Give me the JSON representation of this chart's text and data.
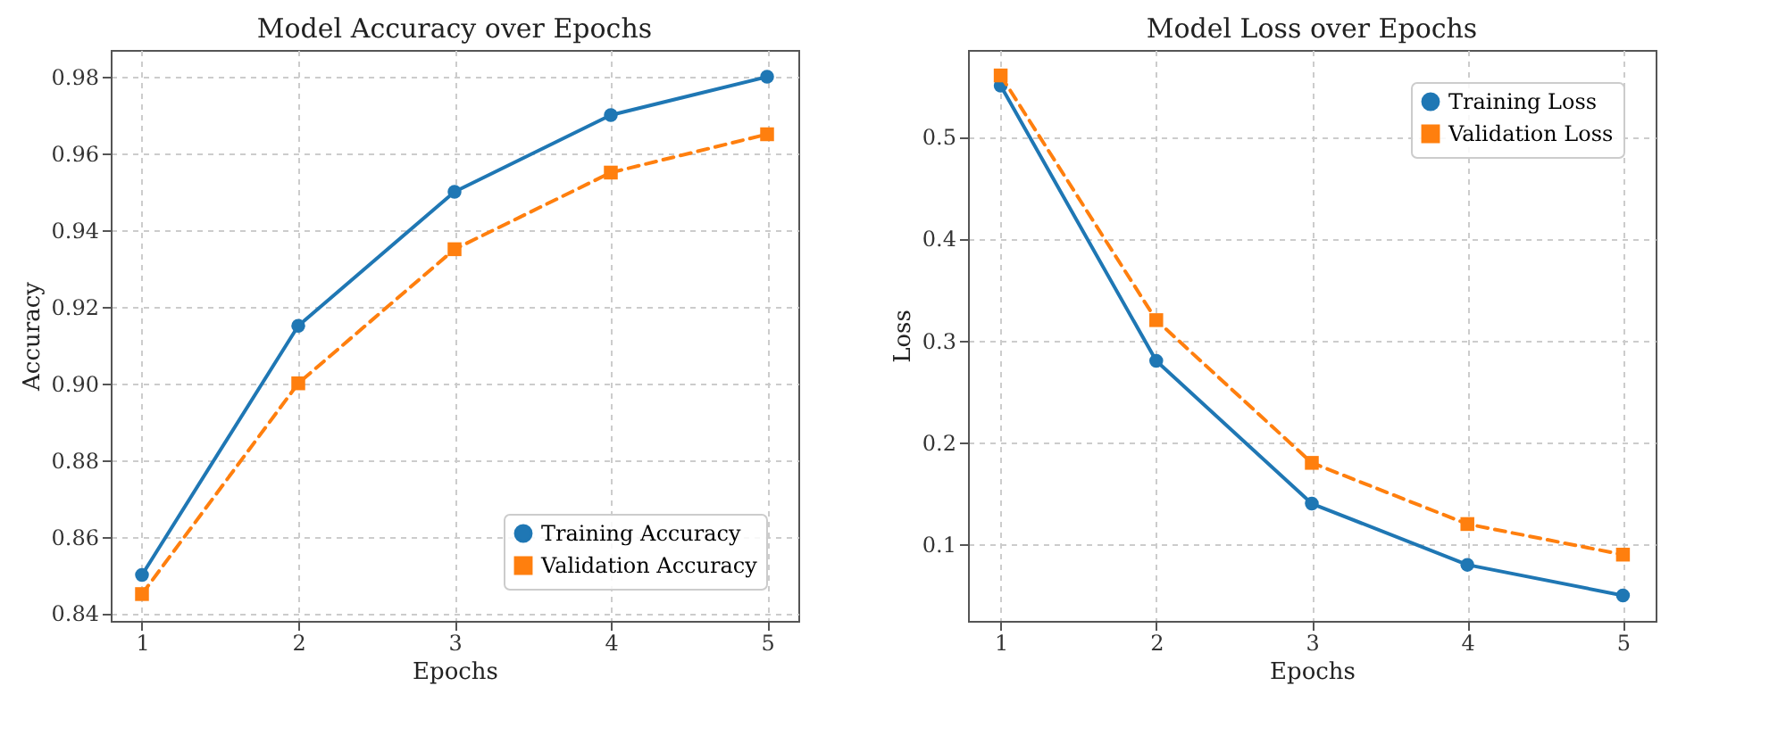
{
  "chart_data": [
    {
      "type": "line",
      "title": "Model Accuracy over Epochs",
      "xlabel": "Epochs",
      "ylabel": "Accuracy",
      "x": [
        1,
        2,
        3,
        4,
        5
      ],
      "xlim": [
        0.8,
        5.2
      ],
      "xticks": [
        1,
        2,
        3,
        4,
        5
      ],
      "ylim": [
        0.838,
        0.987
      ],
      "yticks": [
        0.84,
        0.86,
        0.88,
        {
          "value": 0.9,
          "label": "0.90"
        },
        0.92,
        0.94,
        0.96,
        0.98
      ],
      "grid": true,
      "legend": "bottom right",
      "series": [
        {
          "name": "Training Accuracy",
          "color": "#1f77b4",
          "marker": "circle",
          "line_style": "solid",
          "values": [
            0.85,
            0.915,
            0.95,
            0.97,
            0.98
          ]
        },
        {
          "name": "Validation Accuracy",
          "color": "#ff7f0e",
          "marker": "square",
          "line_style": "dashed",
          "values": [
            0.845,
            0.9,
            0.935,
            0.955,
            0.965
          ]
        }
      ]
    },
    {
      "type": "line",
      "title": "Model Loss over Epochs",
      "xlabel": "Epochs",
      "ylabel": "Loss",
      "x": [
        1,
        2,
        3,
        4,
        5
      ],
      "xlim": [
        0.79,
        5.21
      ],
      "xticks": [
        1,
        2,
        3,
        4,
        5
      ],
      "ylim": [
        0.025,
        0.585
      ],
      "yticks": [
        0.1,
        0.2,
        0.3,
        0.4,
        0.5
      ],
      "grid": true,
      "legend": "top right",
      "series": [
        {
          "name": "Training Loss",
          "color": "#1f77b4",
          "marker": "circle",
          "line_style": "solid",
          "values": [
            0.55,
            0.28,
            0.14,
            0.08,
            0.05
          ]
        },
        {
          "name": "Validation Loss",
          "color": "#ff7f0e",
          "marker": "square",
          "line_style": "dashed",
          "values": [
            0.56,
            0.32,
            0.18,
            0.12,
            0.09
          ]
        }
      ]
    }
  ]
}
